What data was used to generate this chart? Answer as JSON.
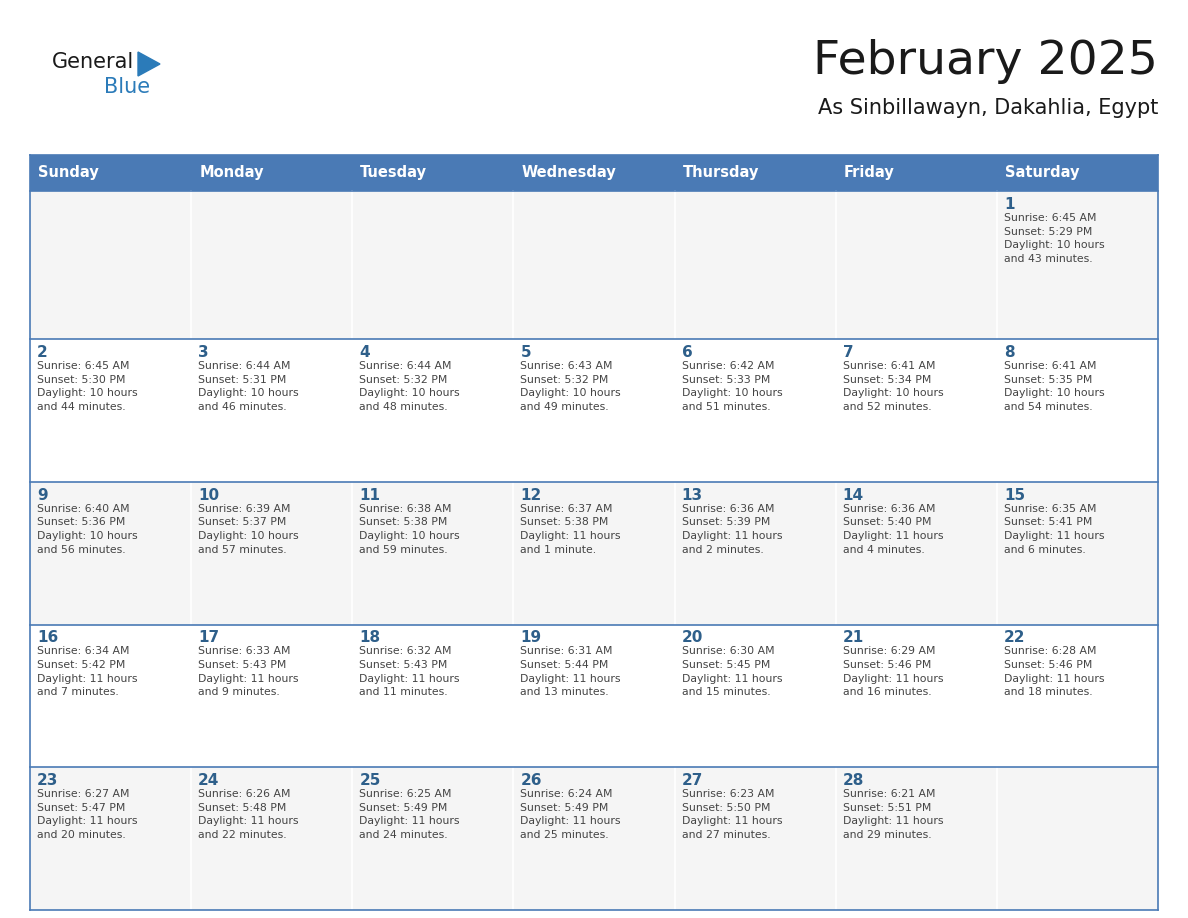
{
  "title": "February 2025",
  "subtitle": "As Sinbillawayn, Dakahlia, Egypt",
  "days_of_week": [
    "Sunday",
    "Monday",
    "Tuesday",
    "Wednesday",
    "Thursday",
    "Friday",
    "Saturday"
  ],
  "header_bg": "#4A7AB5",
  "header_text": "#FFFFFF",
  "cell_bg": "#FFFFFF",
  "cell_bg_alt": "#F5F5F5",
  "line_color": "#4A7AB5",
  "day_number_color": "#2E5F8A",
  "cell_text_color": "#444444",
  "title_color": "#1a1a1a",
  "subtitle_color": "#1a1a1a",
  "logo_general_color": "#1a1a1a",
  "logo_blue_color": "#2B7BB9",
  "logo_triangle_color": "#2B7BB9",
  "calendar_data": [
    [
      {
        "day": null,
        "info": null
      },
      {
        "day": null,
        "info": null
      },
      {
        "day": null,
        "info": null
      },
      {
        "day": null,
        "info": null
      },
      {
        "day": null,
        "info": null
      },
      {
        "day": null,
        "info": null
      },
      {
        "day": 1,
        "info": "Sunrise: 6:45 AM\nSunset: 5:29 PM\nDaylight: 10 hours\nand 43 minutes."
      }
    ],
    [
      {
        "day": 2,
        "info": "Sunrise: 6:45 AM\nSunset: 5:30 PM\nDaylight: 10 hours\nand 44 minutes."
      },
      {
        "day": 3,
        "info": "Sunrise: 6:44 AM\nSunset: 5:31 PM\nDaylight: 10 hours\nand 46 minutes."
      },
      {
        "day": 4,
        "info": "Sunrise: 6:44 AM\nSunset: 5:32 PM\nDaylight: 10 hours\nand 48 minutes."
      },
      {
        "day": 5,
        "info": "Sunrise: 6:43 AM\nSunset: 5:32 PM\nDaylight: 10 hours\nand 49 minutes."
      },
      {
        "day": 6,
        "info": "Sunrise: 6:42 AM\nSunset: 5:33 PM\nDaylight: 10 hours\nand 51 minutes."
      },
      {
        "day": 7,
        "info": "Sunrise: 6:41 AM\nSunset: 5:34 PM\nDaylight: 10 hours\nand 52 minutes."
      },
      {
        "day": 8,
        "info": "Sunrise: 6:41 AM\nSunset: 5:35 PM\nDaylight: 10 hours\nand 54 minutes."
      }
    ],
    [
      {
        "day": 9,
        "info": "Sunrise: 6:40 AM\nSunset: 5:36 PM\nDaylight: 10 hours\nand 56 minutes."
      },
      {
        "day": 10,
        "info": "Sunrise: 6:39 AM\nSunset: 5:37 PM\nDaylight: 10 hours\nand 57 minutes."
      },
      {
        "day": 11,
        "info": "Sunrise: 6:38 AM\nSunset: 5:38 PM\nDaylight: 10 hours\nand 59 minutes."
      },
      {
        "day": 12,
        "info": "Sunrise: 6:37 AM\nSunset: 5:38 PM\nDaylight: 11 hours\nand 1 minute."
      },
      {
        "day": 13,
        "info": "Sunrise: 6:36 AM\nSunset: 5:39 PM\nDaylight: 11 hours\nand 2 minutes."
      },
      {
        "day": 14,
        "info": "Sunrise: 6:36 AM\nSunset: 5:40 PM\nDaylight: 11 hours\nand 4 minutes."
      },
      {
        "day": 15,
        "info": "Sunrise: 6:35 AM\nSunset: 5:41 PM\nDaylight: 11 hours\nand 6 minutes."
      }
    ],
    [
      {
        "day": 16,
        "info": "Sunrise: 6:34 AM\nSunset: 5:42 PM\nDaylight: 11 hours\nand 7 minutes."
      },
      {
        "day": 17,
        "info": "Sunrise: 6:33 AM\nSunset: 5:43 PM\nDaylight: 11 hours\nand 9 minutes."
      },
      {
        "day": 18,
        "info": "Sunrise: 6:32 AM\nSunset: 5:43 PM\nDaylight: 11 hours\nand 11 minutes."
      },
      {
        "day": 19,
        "info": "Sunrise: 6:31 AM\nSunset: 5:44 PM\nDaylight: 11 hours\nand 13 minutes."
      },
      {
        "day": 20,
        "info": "Sunrise: 6:30 AM\nSunset: 5:45 PM\nDaylight: 11 hours\nand 15 minutes."
      },
      {
        "day": 21,
        "info": "Sunrise: 6:29 AM\nSunset: 5:46 PM\nDaylight: 11 hours\nand 16 minutes."
      },
      {
        "day": 22,
        "info": "Sunrise: 6:28 AM\nSunset: 5:46 PM\nDaylight: 11 hours\nand 18 minutes."
      }
    ],
    [
      {
        "day": 23,
        "info": "Sunrise: 6:27 AM\nSunset: 5:47 PM\nDaylight: 11 hours\nand 20 minutes."
      },
      {
        "day": 24,
        "info": "Sunrise: 6:26 AM\nSunset: 5:48 PM\nDaylight: 11 hours\nand 22 minutes."
      },
      {
        "day": 25,
        "info": "Sunrise: 6:25 AM\nSunset: 5:49 PM\nDaylight: 11 hours\nand 24 minutes."
      },
      {
        "day": 26,
        "info": "Sunrise: 6:24 AM\nSunset: 5:49 PM\nDaylight: 11 hours\nand 25 minutes."
      },
      {
        "day": 27,
        "info": "Sunrise: 6:23 AM\nSunset: 5:50 PM\nDaylight: 11 hours\nand 27 minutes."
      },
      {
        "day": 28,
        "info": "Sunrise: 6:21 AM\nSunset: 5:51 PM\nDaylight: 11 hours\nand 29 minutes."
      },
      {
        "day": null,
        "info": null
      }
    ]
  ],
  "figsize": [
    11.88,
    9.18
  ],
  "dpi": 100
}
